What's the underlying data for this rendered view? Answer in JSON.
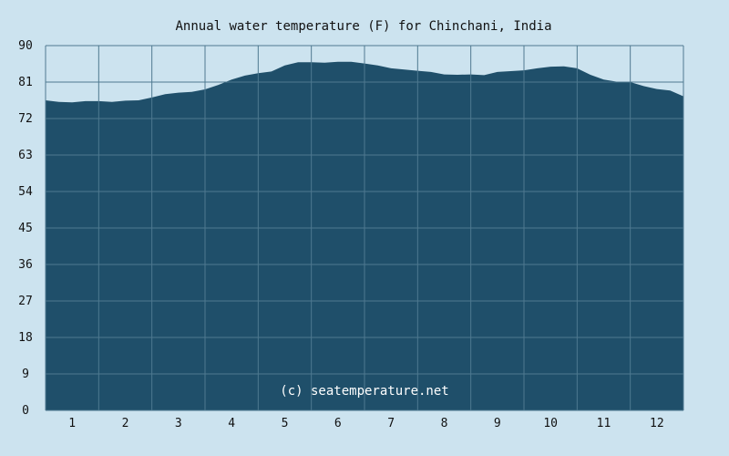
{
  "chart_data": {
    "type": "area",
    "title": "Annual water temperature (F) for Chinchani, India",
    "xlabel": "",
    "ylabel": "",
    "ylim": [
      0,
      90
    ],
    "yticks": [
      0,
      9,
      18,
      27,
      36,
      45,
      54,
      63,
      72,
      81,
      90
    ],
    "xlim": [
      0.5,
      12.5
    ],
    "xticks": [
      1,
      2,
      3,
      4,
      5,
      6,
      7,
      8,
      9,
      10,
      11,
      12
    ],
    "grid": true,
    "legend": "none",
    "series": [
      {
        "x": [
          0.5,
          0.75,
          1.0,
          1.25,
          1.5,
          1.75,
          2.0,
          2.25,
          2.5,
          2.75,
          3.0,
          3.25,
          3.5,
          3.75,
          4.0,
          4.25,
          4.5,
          4.75,
          5.0,
          5.25,
          5.5,
          5.75,
          6.0,
          6.25,
          6.5,
          6.75,
          7.0,
          7.25,
          7.5,
          7.75,
          8.0,
          8.25,
          8.5,
          8.75,
          9.0,
          9.25,
          9.5,
          9.75,
          10.0,
          10.25,
          10.5,
          10.75,
          11.0,
          11.25,
          11.5,
          11.75,
          12.0,
          12.25,
          12.5
        ],
        "values": [
          76.5,
          76.1,
          76.0,
          76.3,
          76.3,
          76.1,
          76.4,
          76.5,
          77.2,
          78.0,
          78.4,
          78.6,
          79.2,
          80.3,
          81.6,
          82.6,
          83.2,
          83.6,
          85.1,
          85.9,
          85.9,
          85.8,
          86.0,
          86.0,
          85.6,
          85.1,
          84.4,
          84.1,
          83.8,
          83.5,
          82.9,
          82.8,
          82.9,
          82.7,
          83.5,
          83.7,
          83.9,
          84.4,
          84.8,
          84.9,
          84.4,
          82.8,
          81.6,
          81.1,
          81.0,
          80.0,
          79.3,
          78.9,
          77.5
        ]
      }
    ],
    "colors": {
      "background": "#cce3ef",
      "area": "#1f4f6a",
      "grid": "#4f7990"
    }
  },
  "watermark": "(c) seatemperature.net"
}
